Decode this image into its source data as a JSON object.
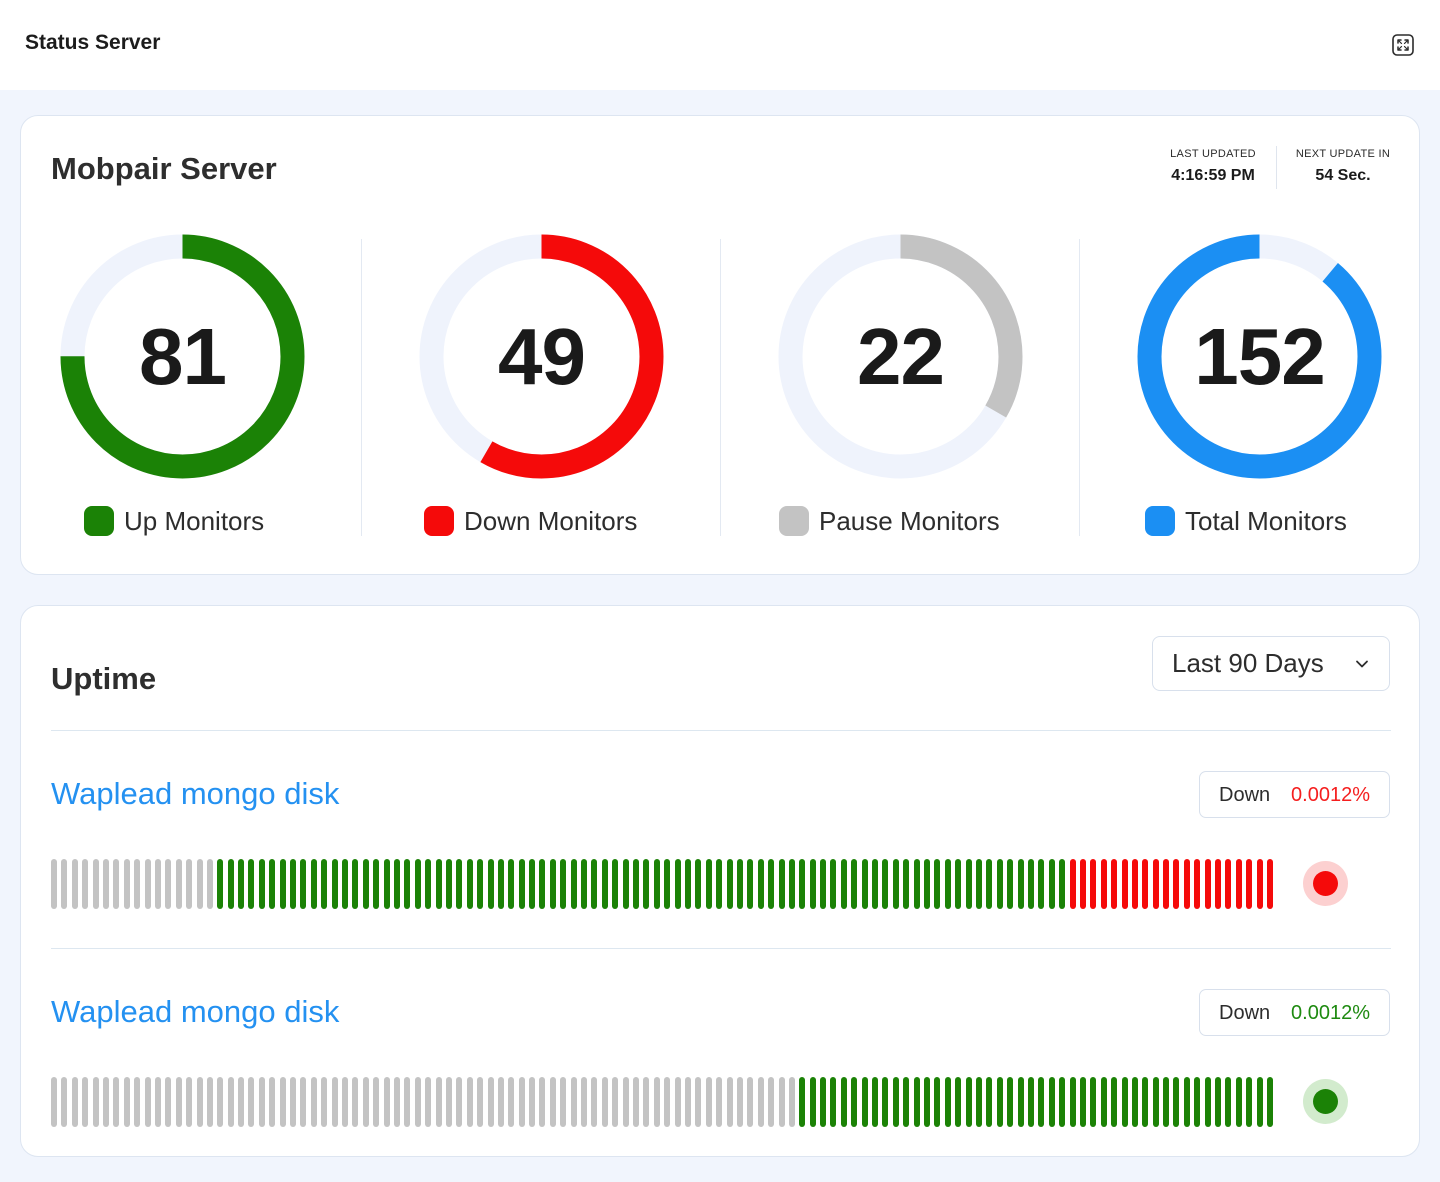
{
  "header": {
    "title": "Status Server",
    "expand_icon": "expand-icon"
  },
  "server": {
    "name": "Mobpair Server",
    "last_updated_label": "LAST UPDATED",
    "last_updated_value": "4:16:59 PM",
    "next_update_label": "NEXT UPDATE IN",
    "next_update_value": "54 Sec."
  },
  "gauges": [
    {
      "key": "up",
      "value": "81",
      "label": "Up Monitors",
      "color": "#1b8206",
      "fraction": 0.75,
      "start_fraction": 0
    },
    {
      "key": "down",
      "value": "49",
      "label": "Down Monitors",
      "color": "#f50a0a",
      "fraction": 0.5833,
      "start_fraction": 0
    },
    {
      "key": "pause",
      "value": "22",
      "label": "Pause Monitors",
      "color": "#c3c3c3",
      "fraction": 0.3333,
      "start_fraction": 0
    },
    {
      "key": "total",
      "value": "152",
      "label": "Total Monitors",
      "color": "#1b8ff3",
      "fraction": 0.8889,
      "start_fraction": 0.1111
    }
  ],
  "colors": {
    "track": "#eff3fc",
    "up": "#1b8206",
    "down": "#f50a0a",
    "pause": "#c3c3c3"
  },
  "uptime": {
    "title": "Uptime",
    "range_label": "Last 90 Days",
    "range_icon": "chevron-down-icon",
    "monitors": [
      {
        "name": "Waplead mongo disk",
        "status_label": "Down",
        "status_value": "0.0012%",
        "status_color": "#f51e1e",
        "indicator": "down",
        "segments": [
          {
            "state": "pause",
            "count": 16
          },
          {
            "state": "up",
            "count": 82
          },
          {
            "state": "down",
            "count": 20
          }
        ]
      },
      {
        "name": "Waplead mongo disk",
        "status_label": "Down",
        "status_value": "0.0012%",
        "status_color": "#1e8a10",
        "indicator": "up",
        "segments": [
          {
            "state": "pause",
            "count": 72
          },
          {
            "state": "up",
            "count": 46
          }
        ]
      }
    ]
  }
}
